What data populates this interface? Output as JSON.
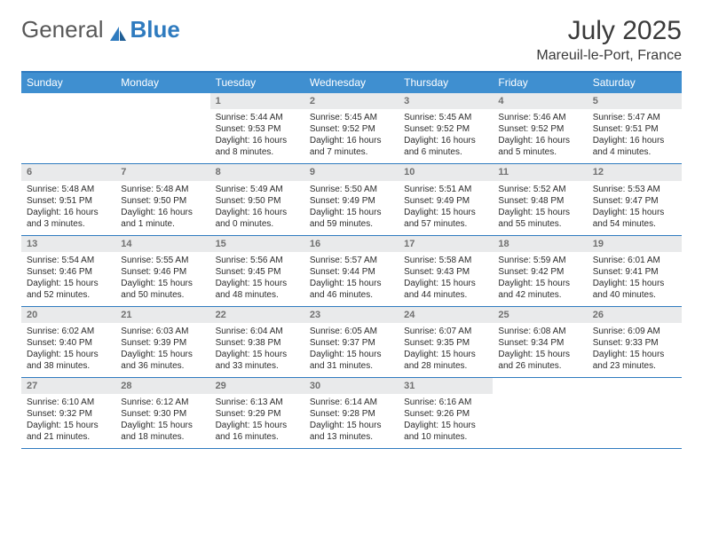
{
  "brand": {
    "word1": "General",
    "word2": "Blue"
  },
  "title": "July 2025",
  "location": "Mareuil-le-Port, France",
  "colors": {
    "header_bg": "#3f8fd0",
    "header_text": "#ffffff",
    "rule": "#2f7bbf",
    "daynum_bg": "#e9eaeb",
    "daynum_text": "#707070",
    "body_text": "#2b2b2b",
    "logo_blue": "#2f7bbf",
    "logo_grey": "#585858"
  },
  "day_headers": [
    "Sunday",
    "Monday",
    "Tuesday",
    "Wednesday",
    "Thursday",
    "Friday",
    "Saturday"
  ],
  "weeks": [
    [
      null,
      null,
      {
        "n": "1",
        "sunrise": "Sunrise: 5:44 AM",
        "sunset": "Sunset: 9:53 PM",
        "day1": "Daylight: 16 hours",
        "day2": "and 8 minutes."
      },
      {
        "n": "2",
        "sunrise": "Sunrise: 5:45 AM",
        "sunset": "Sunset: 9:52 PM",
        "day1": "Daylight: 16 hours",
        "day2": "and 7 minutes."
      },
      {
        "n": "3",
        "sunrise": "Sunrise: 5:45 AM",
        "sunset": "Sunset: 9:52 PM",
        "day1": "Daylight: 16 hours",
        "day2": "and 6 minutes."
      },
      {
        "n": "4",
        "sunrise": "Sunrise: 5:46 AM",
        "sunset": "Sunset: 9:52 PM",
        "day1": "Daylight: 16 hours",
        "day2": "and 5 minutes."
      },
      {
        "n": "5",
        "sunrise": "Sunrise: 5:47 AM",
        "sunset": "Sunset: 9:51 PM",
        "day1": "Daylight: 16 hours",
        "day2": "and 4 minutes."
      }
    ],
    [
      {
        "n": "6",
        "sunrise": "Sunrise: 5:48 AM",
        "sunset": "Sunset: 9:51 PM",
        "day1": "Daylight: 16 hours",
        "day2": "and 3 minutes."
      },
      {
        "n": "7",
        "sunrise": "Sunrise: 5:48 AM",
        "sunset": "Sunset: 9:50 PM",
        "day1": "Daylight: 16 hours",
        "day2": "and 1 minute."
      },
      {
        "n": "8",
        "sunrise": "Sunrise: 5:49 AM",
        "sunset": "Sunset: 9:50 PM",
        "day1": "Daylight: 16 hours",
        "day2": "and 0 minutes."
      },
      {
        "n": "9",
        "sunrise": "Sunrise: 5:50 AM",
        "sunset": "Sunset: 9:49 PM",
        "day1": "Daylight: 15 hours",
        "day2": "and 59 minutes."
      },
      {
        "n": "10",
        "sunrise": "Sunrise: 5:51 AM",
        "sunset": "Sunset: 9:49 PM",
        "day1": "Daylight: 15 hours",
        "day2": "and 57 minutes."
      },
      {
        "n": "11",
        "sunrise": "Sunrise: 5:52 AM",
        "sunset": "Sunset: 9:48 PM",
        "day1": "Daylight: 15 hours",
        "day2": "and 55 minutes."
      },
      {
        "n": "12",
        "sunrise": "Sunrise: 5:53 AM",
        "sunset": "Sunset: 9:47 PM",
        "day1": "Daylight: 15 hours",
        "day2": "and 54 minutes."
      }
    ],
    [
      {
        "n": "13",
        "sunrise": "Sunrise: 5:54 AM",
        "sunset": "Sunset: 9:46 PM",
        "day1": "Daylight: 15 hours",
        "day2": "and 52 minutes."
      },
      {
        "n": "14",
        "sunrise": "Sunrise: 5:55 AM",
        "sunset": "Sunset: 9:46 PM",
        "day1": "Daylight: 15 hours",
        "day2": "and 50 minutes."
      },
      {
        "n": "15",
        "sunrise": "Sunrise: 5:56 AM",
        "sunset": "Sunset: 9:45 PM",
        "day1": "Daylight: 15 hours",
        "day2": "and 48 minutes."
      },
      {
        "n": "16",
        "sunrise": "Sunrise: 5:57 AM",
        "sunset": "Sunset: 9:44 PM",
        "day1": "Daylight: 15 hours",
        "day2": "and 46 minutes."
      },
      {
        "n": "17",
        "sunrise": "Sunrise: 5:58 AM",
        "sunset": "Sunset: 9:43 PM",
        "day1": "Daylight: 15 hours",
        "day2": "and 44 minutes."
      },
      {
        "n": "18",
        "sunrise": "Sunrise: 5:59 AM",
        "sunset": "Sunset: 9:42 PM",
        "day1": "Daylight: 15 hours",
        "day2": "and 42 minutes."
      },
      {
        "n": "19",
        "sunrise": "Sunrise: 6:01 AM",
        "sunset": "Sunset: 9:41 PM",
        "day1": "Daylight: 15 hours",
        "day2": "and 40 minutes."
      }
    ],
    [
      {
        "n": "20",
        "sunrise": "Sunrise: 6:02 AM",
        "sunset": "Sunset: 9:40 PM",
        "day1": "Daylight: 15 hours",
        "day2": "and 38 minutes."
      },
      {
        "n": "21",
        "sunrise": "Sunrise: 6:03 AM",
        "sunset": "Sunset: 9:39 PM",
        "day1": "Daylight: 15 hours",
        "day2": "and 36 minutes."
      },
      {
        "n": "22",
        "sunrise": "Sunrise: 6:04 AM",
        "sunset": "Sunset: 9:38 PM",
        "day1": "Daylight: 15 hours",
        "day2": "and 33 minutes."
      },
      {
        "n": "23",
        "sunrise": "Sunrise: 6:05 AM",
        "sunset": "Sunset: 9:37 PM",
        "day1": "Daylight: 15 hours",
        "day2": "and 31 minutes."
      },
      {
        "n": "24",
        "sunrise": "Sunrise: 6:07 AM",
        "sunset": "Sunset: 9:35 PM",
        "day1": "Daylight: 15 hours",
        "day2": "and 28 minutes."
      },
      {
        "n": "25",
        "sunrise": "Sunrise: 6:08 AM",
        "sunset": "Sunset: 9:34 PM",
        "day1": "Daylight: 15 hours",
        "day2": "and 26 minutes."
      },
      {
        "n": "26",
        "sunrise": "Sunrise: 6:09 AM",
        "sunset": "Sunset: 9:33 PM",
        "day1": "Daylight: 15 hours",
        "day2": "and 23 minutes."
      }
    ],
    [
      {
        "n": "27",
        "sunrise": "Sunrise: 6:10 AM",
        "sunset": "Sunset: 9:32 PM",
        "day1": "Daylight: 15 hours",
        "day2": "and 21 minutes."
      },
      {
        "n": "28",
        "sunrise": "Sunrise: 6:12 AM",
        "sunset": "Sunset: 9:30 PM",
        "day1": "Daylight: 15 hours",
        "day2": "and 18 minutes."
      },
      {
        "n": "29",
        "sunrise": "Sunrise: 6:13 AM",
        "sunset": "Sunset: 9:29 PM",
        "day1": "Daylight: 15 hours",
        "day2": "and 16 minutes."
      },
      {
        "n": "30",
        "sunrise": "Sunrise: 6:14 AM",
        "sunset": "Sunset: 9:28 PM",
        "day1": "Daylight: 15 hours",
        "day2": "and 13 minutes."
      },
      {
        "n": "31",
        "sunrise": "Sunrise: 6:16 AM",
        "sunset": "Sunset: 9:26 PM",
        "day1": "Daylight: 15 hours",
        "day2": "and 10 minutes."
      },
      null,
      null
    ]
  ]
}
